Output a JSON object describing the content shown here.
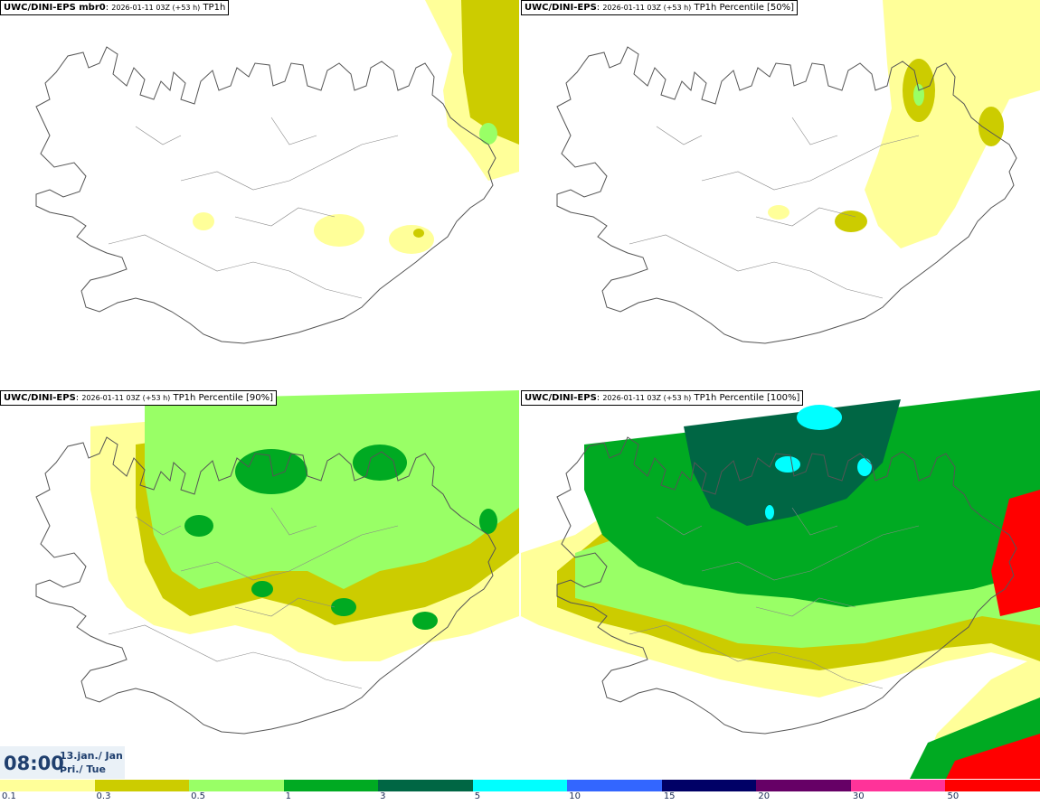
{
  "panels": [
    {
      "model": "UWC/DINI-EPS mbr0",
      "run": "2026-01-11 03Z (+53 h)",
      "field": "TP1h"
    },
    {
      "model": "UWC/DINI-EPS",
      "run": "2026-01-11 03Z (+53 h)",
      "field": "TP1h Percentile [50%]"
    },
    {
      "model": "UWC/DINI-EPS",
      "run": "2026-01-11 03Z (+53 h)",
      "field": "TP1h Percentile [90%]"
    },
    {
      "model": "UWC/DINI-EPS",
      "run": "2026-01-11 03Z (+53 h)",
      "field": "TP1h Percentile [100%]"
    }
  ],
  "valid_time": {
    "hour": "08:00",
    "date": "13.jan./ Jan",
    "weekday": "Þri./ Tue"
  },
  "legend": {
    "labels": [
      "0.1",
      "0.3",
      "0.5",
      "1",
      "3",
      "5",
      "10",
      "15",
      "20",
      "30",
      "50"
    ],
    "colors": [
      "#ffff99",
      "#cccc00",
      "#99ff66",
      "#00aa22",
      "#006644",
      "#00ffff",
      "#3366ff",
      "#000066",
      "#660066",
      "#ff3399",
      "#ff0000"
    ]
  }
}
